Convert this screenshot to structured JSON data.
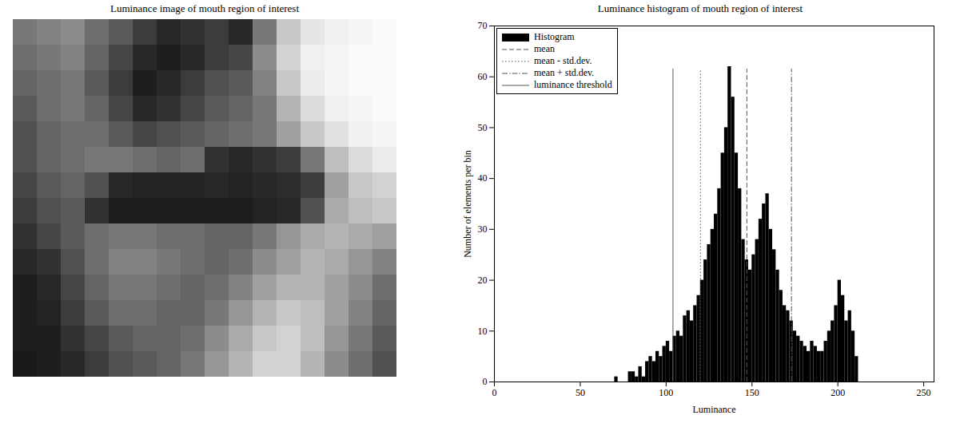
{
  "chart_data": [
    {
      "type": "heatmap",
      "title": "Luminance image of mouth region of interest",
      "tick_labels": false,
      "value_range": [
        0,
        255
      ],
      "cells": [
        [
          120,
          130,
          140,
          110,
          90,
          60,
          40,
          50,
          60,
          40,
          120,
          200,
          230,
          240,
          245,
          250
        ],
        [
          110,
          120,
          130,
          100,
          70,
          40,
          30,
          40,
          60,
          70,
          140,
          210,
          240,
          245,
          250,
          250
        ],
        [
          100,
          110,
          120,
          90,
          60,
          30,
          40,
          60,
          80,
          90,
          130,
          200,
          235,
          245,
          250,
          250
        ],
        [
          90,
          110,
          120,
          100,
          70,
          40,
          50,
          70,
          90,
          100,
          120,
          180,
          220,
          240,
          245,
          250
        ],
        [
          80,
          100,
          110,
          110,
          90,
          70,
          80,
          90,
          100,
          110,
          120,
          160,
          200,
          225,
          240,
          245
        ],
        [
          80,
          100,
          110,
          120,
          120,
          110,
          100,
          110,
          50,
          40,
          50,
          60,
          120,
          190,
          220,
          235
        ],
        [
          70,
          90,
          100,
          80,
          40,
          35,
          35,
          35,
          40,
          35,
          40,
          45,
          60,
          160,
          200,
          210
        ],
        [
          60,
          80,
          90,
          50,
          30,
          30,
          30,
          30,
          30,
          30,
          35,
          40,
          80,
          170,
          190,
          200
        ],
        [
          50,
          70,
          90,
          110,
          120,
          120,
          110,
          110,
          100,
          100,
          120,
          150,
          170,
          180,
          170,
          160
        ],
        [
          40,
          50,
          80,
          110,
          130,
          130,
          120,
          110,
          100,
          110,
          140,
          160,
          180,
          170,
          150,
          130
        ],
        [
          30,
          40,
          70,
          100,
          120,
          120,
          110,
          100,
          110,
          130,
          160,
          180,
          180,
          160,
          140,
          110
        ],
        [
          30,
          35,
          60,
          90,
          110,
          110,
          100,
          100,
          120,
          150,
          180,
          200,
          190,
          160,
          130,
          100
        ],
        [
          30,
          30,
          50,
          70,
          90,
          100,
          100,
          110,
          140,
          170,
          200,
          210,
          190,
          150,
          120,
          90
        ],
        [
          25,
          30,
          40,
          60,
          80,
          90,
          100,
          120,
          150,
          180,
          210,
          210,
          180,
          140,
          110,
          80
        ]
      ]
    },
    {
      "type": "histogram",
      "title": "Luminance histogram of mouth region of interest",
      "x_label": "Luminance",
      "y_label": "Number of elements per bin",
      "name": "Histogram",
      "color": "#000000",
      "bins": [
        68,
        70,
        72,
        74,
        76,
        78,
        80,
        82,
        84,
        86,
        88,
        90,
        92,
        94,
        96,
        98,
        100,
        102,
        104,
        106,
        108,
        110,
        112,
        114,
        116,
        118,
        120,
        122,
        124,
        126,
        128,
        130,
        132,
        134,
        136,
        138,
        140,
        142,
        144,
        146,
        148,
        150,
        152,
        154,
        156,
        158,
        160,
        162,
        164,
        166,
        168,
        170,
        172,
        174,
        176,
        178,
        180,
        182,
        184,
        186,
        188,
        190,
        192,
        194,
        196,
        198,
        200,
        202,
        204,
        206,
        208,
        210,
        212
      ],
      "counts": [
        0,
        1,
        0,
        0,
        0,
        2,
        2,
        1,
        3,
        1,
        4,
        5,
        4,
        6,
        5,
        7,
        8,
        6,
        9,
        10,
        9,
        13,
        14,
        12,
        15,
        17,
        20,
        24,
        27,
        30,
        33,
        38,
        45,
        50,
        62,
        56,
        45,
        38,
        28,
        24,
        22,
        25,
        28,
        32,
        35,
        37,
        30,
        26,
        22,
        18,
        15,
        14,
        12,
        10,
        9,
        8,
        7,
        6,
        8,
        7,
        6,
        6,
        8,
        10,
        12,
        15,
        20,
        17,
        12,
        14,
        10,
        5
      ],
      "lines": [
        {
          "name": "mean",
          "value": 147,
          "top": 61.5,
          "color": "#555555",
          "line_style": "dashed"
        },
        {
          "name": "mean - std.dev.",
          "value": 120,
          "top": 61.5,
          "color": "#555555",
          "line_style": "dotted"
        },
        {
          "name": "mean + std.dev.",
          "value": 173,
          "top": 61.5,
          "color": "#555555",
          "line_style": "dashdot"
        },
        {
          "name": "luminance threshold",
          "value": 104,
          "top": 61.5,
          "color": "#555555",
          "line_style": "solid"
        }
      ],
      "xlim": [
        0,
        256
      ],
      "xticks": [
        0,
        50,
        100,
        150,
        200,
        250
      ],
      "ylim": [
        0,
        70
      ],
      "yticks": [
        0,
        10,
        20,
        30,
        40,
        50,
        60,
        70
      ],
      "grid": false,
      "legend": "upper left"
    }
  ]
}
